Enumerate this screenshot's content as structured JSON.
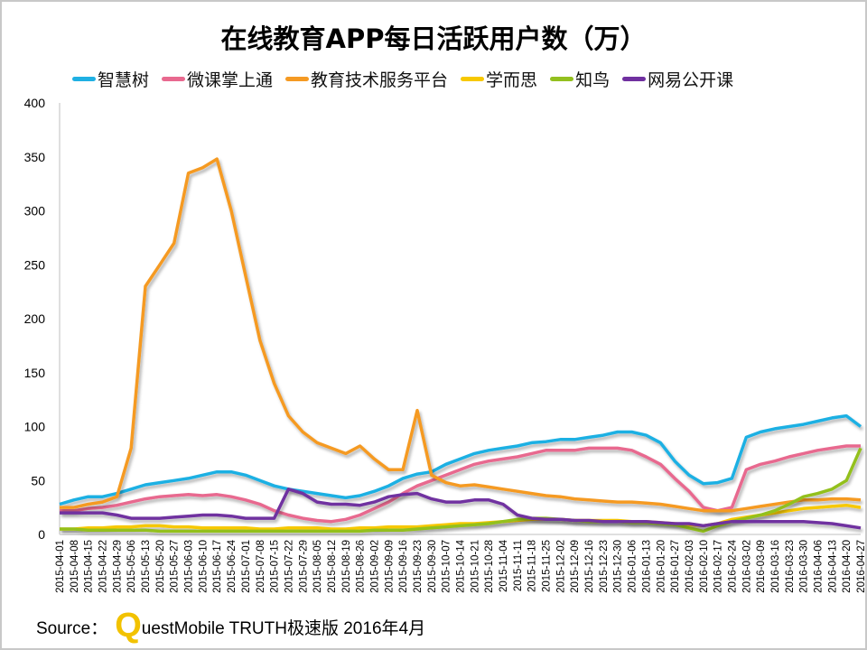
{
  "chart_data": {
    "type": "line",
    "title": "在线教育APP每日活跃用户数（万）",
    "xlabel": "",
    "ylabel": "",
    "ylim": [
      0,
      400
    ],
    "yticks": [
      0,
      50,
      100,
      150,
      200,
      250,
      300,
      350,
      400
    ],
    "grid": false,
    "legend_position": "top",
    "x": [
      "2015-04-01",
      "2015-04-08",
      "2015-04-15",
      "2015-04-22",
      "2015-04-29",
      "2015-05-06",
      "2015-05-13",
      "2015-05-20",
      "2015-05-27",
      "2015-06-03",
      "2015-06-10",
      "2015-06-17",
      "2015-06-24",
      "2015-07-01",
      "2015-07-08",
      "2015-07-15",
      "2015-07-22",
      "2015-07-29",
      "2015-08-05",
      "2015-08-12",
      "2015-08-19",
      "2015-08-26",
      "2015-09-02",
      "2015-09-09",
      "2015-09-16",
      "2015-09-23",
      "2015-09-30",
      "2015-10-07",
      "2015-10-14",
      "2015-10-21",
      "2015-10-28",
      "2015-11-04",
      "2015-11-11",
      "2015-11-18",
      "2015-11-25",
      "2015-12-02",
      "2015-12-09",
      "2015-12-16",
      "2015-12-23",
      "2015-12-30",
      "2016-01-06",
      "2016-01-13",
      "2016-01-20",
      "2016-01-27",
      "2016-02-03",
      "2016-02-10",
      "2016-02-17",
      "2016-02-24",
      "2016-03-02",
      "2016-03-09",
      "2016-03-16",
      "2016-03-23",
      "2016-03-30",
      "2016-04-06",
      "2016-04-13",
      "2016-04-20",
      "2016-04-27"
    ],
    "series": [
      {
        "name": "智慧树",
        "color": "#1fb0e3",
        "values": [
          28,
          32,
          35,
          35,
          38,
          42,
          46,
          48,
          50,
          52,
          55,
          58,
          58,
          55,
          50,
          45,
          42,
          40,
          38,
          36,
          34,
          36,
          40,
          45,
          52,
          56,
          58,
          65,
          70,
          75,
          78,
          80,
          82,
          85,
          86,
          88,
          88,
          90,
          92,
          95,
          95,
          92,
          85,
          68,
          55,
          47,
          48,
          52,
          90,
          95,
          98,
          100,
          102,
          105,
          108,
          110,
          100
        ]
      },
      {
        "name": "微课掌上通",
        "color": "#e8698f",
        "values": [
          22,
          22,
          24,
          25,
          27,
          30,
          33,
          35,
          36,
          37,
          36,
          37,
          35,
          32,
          28,
          22,
          18,
          15,
          13,
          12,
          14,
          18,
          24,
          30,
          38,
          45,
          50,
          55,
          60,
          65,
          68,
          70,
          72,
          75,
          78,
          78,
          78,
          80,
          80,
          80,
          78,
          72,
          65,
          52,
          40,
          25,
          22,
          25,
          60,
          65,
          68,
          72,
          75,
          78,
          80,
          82,
          82
        ]
      },
      {
        "name": "教育技术服务平台",
        "color": "#f59a23",
        "values": [
          25,
          25,
          28,
          30,
          35,
          80,
          230,
          250,
          270,
          335,
          340,
          348,
          300,
          240,
          180,
          140,
          110,
          95,
          85,
          80,
          75,
          82,
          70,
          60,
          60,
          115,
          55,
          48,
          45,
          46,
          44,
          42,
          40,
          38,
          36,
          35,
          33,
          32,
          31,
          30,
          30,
          29,
          28,
          26,
          24,
          22,
          22,
          22,
          24,
          26,
          28,
          30,
          32,
          32,
          33,
          33,
          32
        ]
      },
      {
        "name": "学而思",
        "color": "#f7c800",
        "values": [
          5,
          5,
          6,
          6,
          7,
          7,
          8,
          8,
          7,
          7,
          6,
          6,
          6,
          6,
          5,
          5,
          6,
          6,
          6,
          5,
          5,
          6,
          6,
          7,
          7,
          7,
          8,
          9,
          10,
          10,
          11,
          12,
          13,
          14,
          14,
          14,
          13,
          13,
          13,
          13,
          12,
          12,
          11,
          10,
          9,
          8,
          10,
          14,
          16,
          18,
          20,
          22,
          24,
          25,
          26,
          27,
          25
        ]
      },
      {
        "name": "知鸟",
        "color": "#93c01f",
        "values": [
          5,
          5,
          4,
          4,
          4,
          4,
          4,
          3,
          3,
          3,
          3,
          3,
          3,
          3,
          3,
          3,
          3,
          3,
          3,
          3,
          3,
          3,
          4,
          4,
          4,
          5,
          6,
          7,
          8,
          9,
          10,
          12,
          14,
          15,
          15,
          14,
          13,
          12,
          12,
          12,
          11,
          11,
          10,
          9,
          6,
          3,
          8,
          12,
          15,
          18,
          22,
          28,
          35,
          38,
          42,
          50,
          80
        ]
      },
      {
        "name": "网易公开课",
        "color": "#7030a0",
        "values": [
          20,
          20,
          20,
          20,
          18,
          15,
          15,
          15,
          16,
          17,
          18,
          18,
          17,
          15,
          15,
          15,
          42,
          38,
          30,
          28,
          28,
          27,
          30,
          35,
          37,
          38,
          33,
          30,
          30,
          32,
          32,
          28,
          18,
          15,
          14,
          14,
          13,
          13,
          12,
          12,
          12,
          12,
          11,
          10,
          10,
          8,
          10,
          12,
          12,
          12,
          12,
          12,
          12,
          11,
          10,
          8,
          6
        ]
      }
    ]
  },
  "source": {
    "prefix": "Source：",
    "q": "Q",
    "rest": "uestMobile TRUTH极速版 2016年4月"
  }
}
